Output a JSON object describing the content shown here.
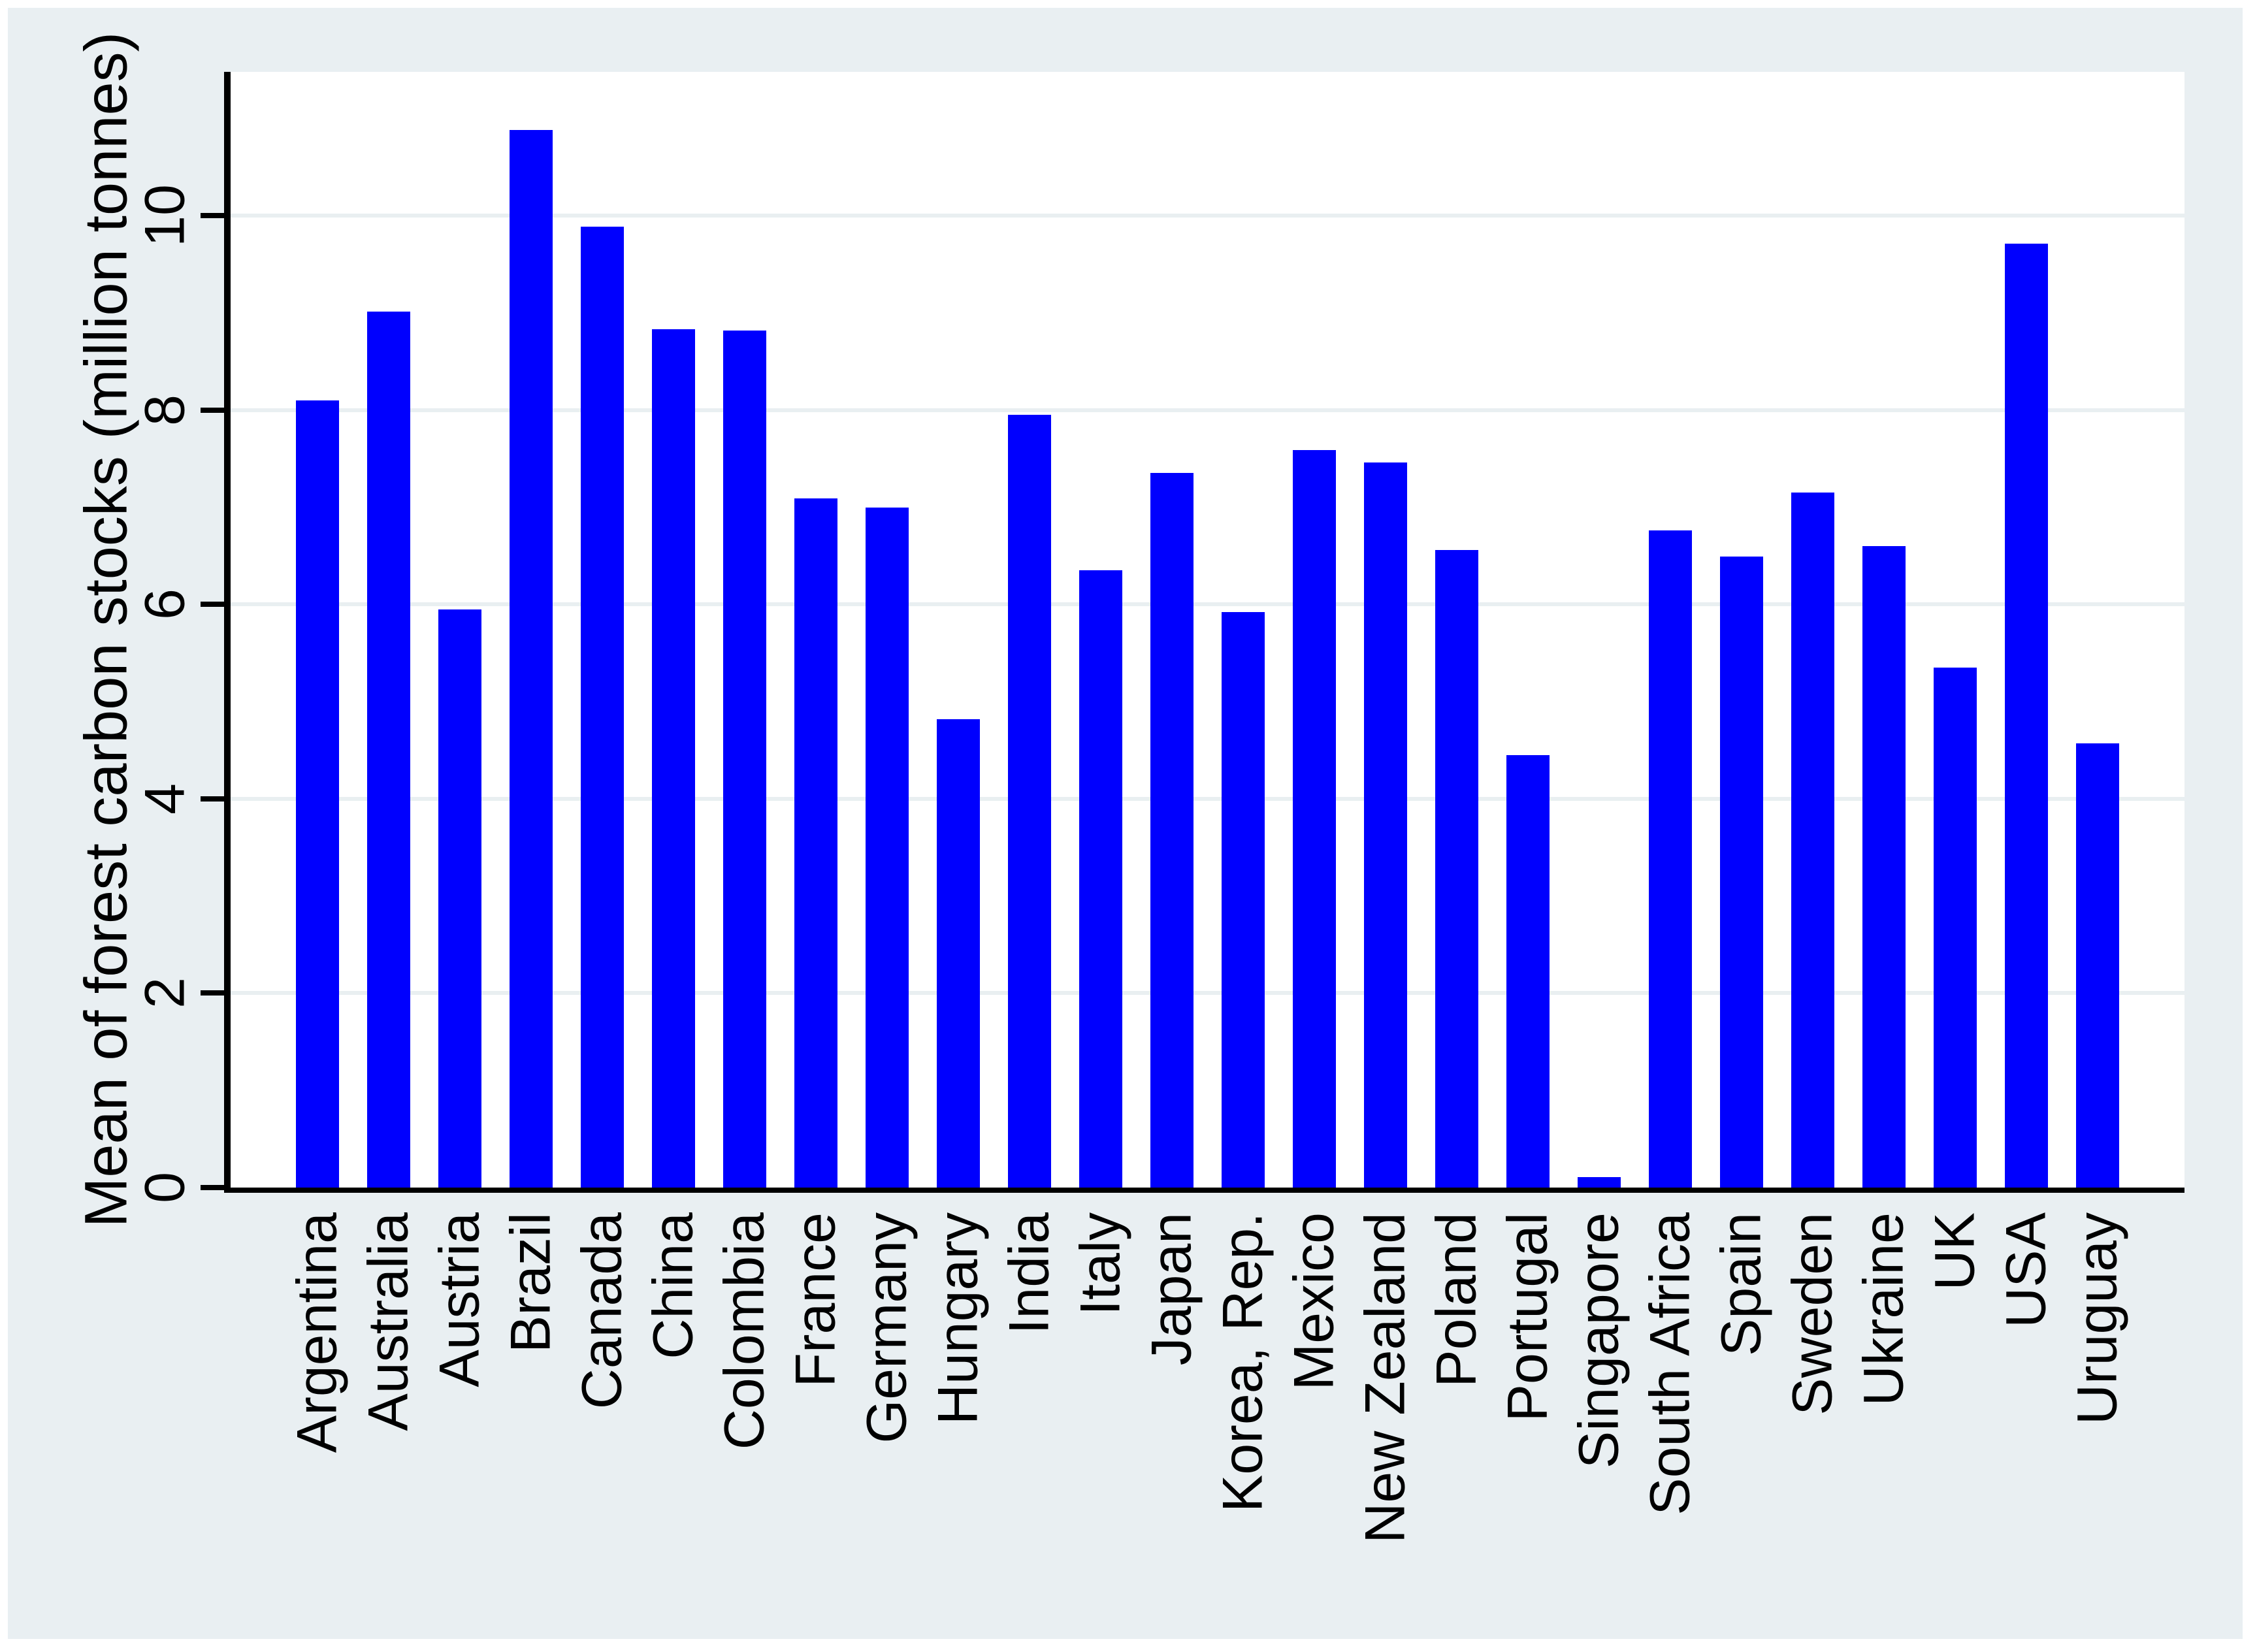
{
  "figure": {
    "background_color": "#e9eff2",
    "plot_background_color": "#ffffff",
    "bar_color": "#0000fe",
    "gridline_color": "#e9eff1",
    "axis_color": "#000000",
    "text_color": "#000000"
  },
  "chart_data": {
    "type": "bar",
    "title": "",
    "xlabel": "",
    "ylabel": "Mean of forest carbon stocks (million tonnes)",
    "categories": [
      "Argentina",
      "Australia",
      "Austria",
      "Brazil",
      "Canada",
      "China",
      "Colombia",
      "France",
      "Germany",
      "Hungary",
      "India",
      "Italy",
      "Japan",
      "Korea, Rep.",
      "Mexico",
      "New Zealand",
      "Poland",
      "Portugal",
      "Singapore",
      "South Africa",
      "Spain",
      "Sweden",
      "Ukraine",
      "UK",
      "USA",
      "Uruguay"
    ],
    "values": [
      8.1,
      9.01,
      5.95,
      10.88,
      9.89,
      8.83,
      8.82,
      7.09,
      7.0,
      4.82,
      7.95,
      6.35,
      7.35,
      5.92,
      7.59,
      7.46,
      6.56,
      4.45,
      0.11,
      6.76,
      6.49,
      7.15,
      6.6,
      5.35,
      9.71,
      4.57
    ],
    "yticks": [
      0,
      2,
      4,
      6,
      8,
      10
    ],
    "ylim": [
      0,
      11.48
    ],
    "grid": "horizontal-only",
    "legend_position": "none",
    "bar_orientation": "vertical",
    "category_label_rotation_deg": 90,
    "ytick_label_rotation_deg": 90
  }
}
